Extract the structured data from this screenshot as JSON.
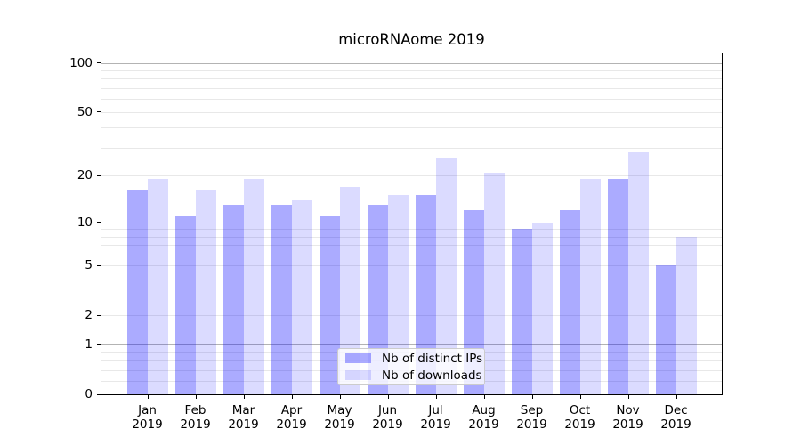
{
  "chart_data": {
    "type": "bar",
    "title": "microRNAome 2019",
    "categories": [
      "Jan",
      "Feb",
      "Mar",
      "Apr",
      "May",
      "Jun",
      "Jul",
      "Aug",
      "Sep",
      "Oct",
      "Nov",
      "Dec"
    ],
    "year_label": "2019",
    "series": [
      {
        "name": "Nb of distinct IPs",
        "color": "rgba(0,0,255,0.33)",
        "color_hex": "#ababff",
        "values": [
          16,
          11,
          13,
          13,
          11,
          13,
          15,
          12,
          9,
          12,
          19,
          5
        ]
      },
      {
        "name": "Nb of downloads",
        "color": "rgba(0,0,255,0.14)",
        "color_hex": "#dcdcff",
        "values": [
          19,
          16,
          19,
          14,
          17,
          15,
          26,
          21,
          10,
          19,
          28,
          8
        ]
      }
    ],
    "xlabel": "",
    "ylabel": "",
    "yaxis": {
      "scale": "log10(1+x)",
      "labeled_ticks": [
        0,
        1,
        2,
        5,
        10,
        20,
        50,
        100
      ],
      "major_gridlines": [
        1,
        10,
        100
      ],
      "minor_gridlines": [
        0.2,
        0.4,
        0.6,
        0.8,
        2,
        3,
        4,
        5,
        6,
        7,
        8,
        9,
        20,
        30,
        40,
        50,
        60,
        70,
        80,
        90
      ],
      "ylim": [
        0,
        114
      ]
    },
    "grid": true,
    "legend_position": "lower center inside plot"
  },
  "colors": {
    "background": "#ffffff",
    "axis": "#000000",
    "gridline_major": "#b3b3b3",
    "gridline_minor": "#e8e8e8",
    "legend_border": "#cccccc",
    "bar_distinct_ips": "#ababff",
    "bar_downloads": "#dcdcff"
  }
}
